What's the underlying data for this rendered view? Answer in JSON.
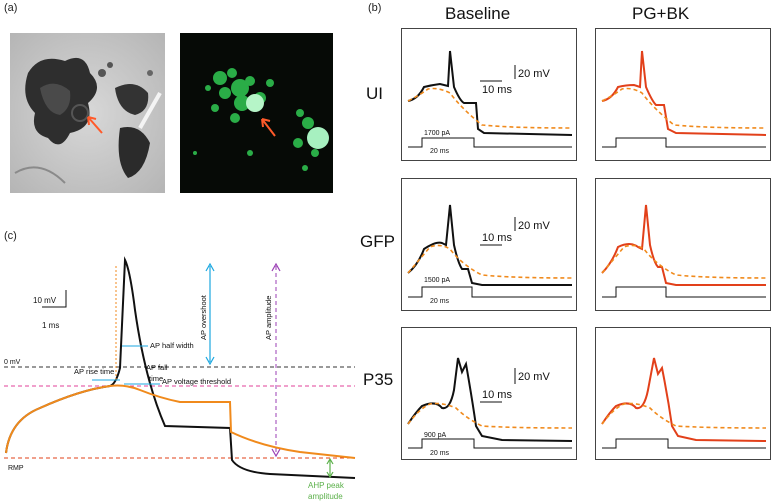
{
  "panels": {
    "a": {
      "label": "(a)"
    },
    "b": {
      "label": "(b)",
      "col_titles": [
        "Baseline",
        "PG+BK"
      ],
      "rows": [
        {
          "name": "UI",
          "current": "1700 pA",
          "duration": "20 ms"
        },
        {
          "name": "GFP",
          "current": "1500 pA",
          "duration": "20 ms"
        },
        {
          "name": "P35",
          "current": "900 pA",
          "duration": "20 ms"
        }
      ],
      "scalebar": {
        "v": "20 mV",
        "t": "10 ms"
      }
    },
    "c": {
      "label": "(c)",
      "scalebar": {
        "v": "10 mV",
        "t": "1 ms"
      },
      "labels": {
        "zero": "0 mV",
        "rmp": "RMP",
        "half_width": "AP half width",
        "rise": "AP rise time",
        "fall": "AP fall time",
        "fall1": "AP fall",
        "fall2": "time",
        "threshold": "AP voltage threshold",
        "overshoot": "AP overshoot",
        "amplitude": "AP amplitude",
        "ahp1": "AHP peak",
        "ahp2": "amplitude"
      }
    }
  },
  "colors": {
    "black": "#111111",
    "orange": "#f08a1c",
    "red": "#e2401a",
    "cyan": "#1ba7e0",
    "purple": "#9b3fb5",
    "green": "#5bb04a",
    "pinkdash": "#e0409a"
  }
}
